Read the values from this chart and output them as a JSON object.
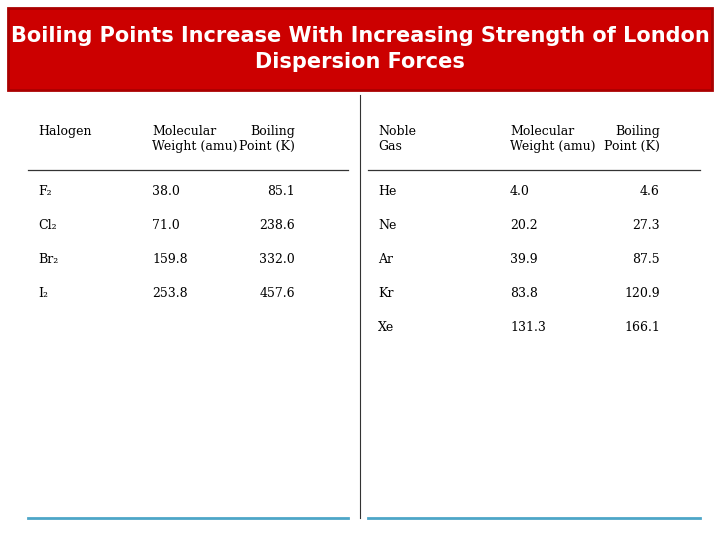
{
  "title_line1": "Boiling Points Increase With Increasing Strength of London",
  "title_line2": "Dispersion Forces",
  "title_bg_color": "#CC0000",
  "title_text_color": "#FFFFFF",
  "bg_color": "#FFFFFF",
  "halogen_headers": [
    "Halogen",
    "Molecular\nWeight (amu)",
    "Boiling\nPoint (K)"
  ],
  "noble_headers": [
    "Noble\nGas",
    "Molecular\nWeight (amu)",
    "Boiling\nPoint (K)"
  ],
  "halogen_data": [
    [
      "F₂",
      "38.0",
      "85.1"
    ],
    [
      "Cl₂",
      "71.0",
      "238.6"
    ],
    [
      "Br₂",
      "159.8",
      "332.0"
    ],
    [
      "I₂",
      "253.8",
      "457.6"
    ]
  ],
  "noble_data": [
    [
      "He",
      "4.0",
      "4.6"
    ],
    [
      "Ne",
      "20.2",
      "27.3"
    ],
    [
      "Ar",
      "39.9",
      "87.5"
    ],
    [
      "Kr",
      "83.8",
      "120.9"
    ],
    [
      "Xe",
      "131.3",
      "166.1"
    ]
  ],
  "title_fontsize": 15,
  "table_fontsize": 9,
  "line_color": "#333333",
  "bottom_line_color": "#4DA6C8"
}
